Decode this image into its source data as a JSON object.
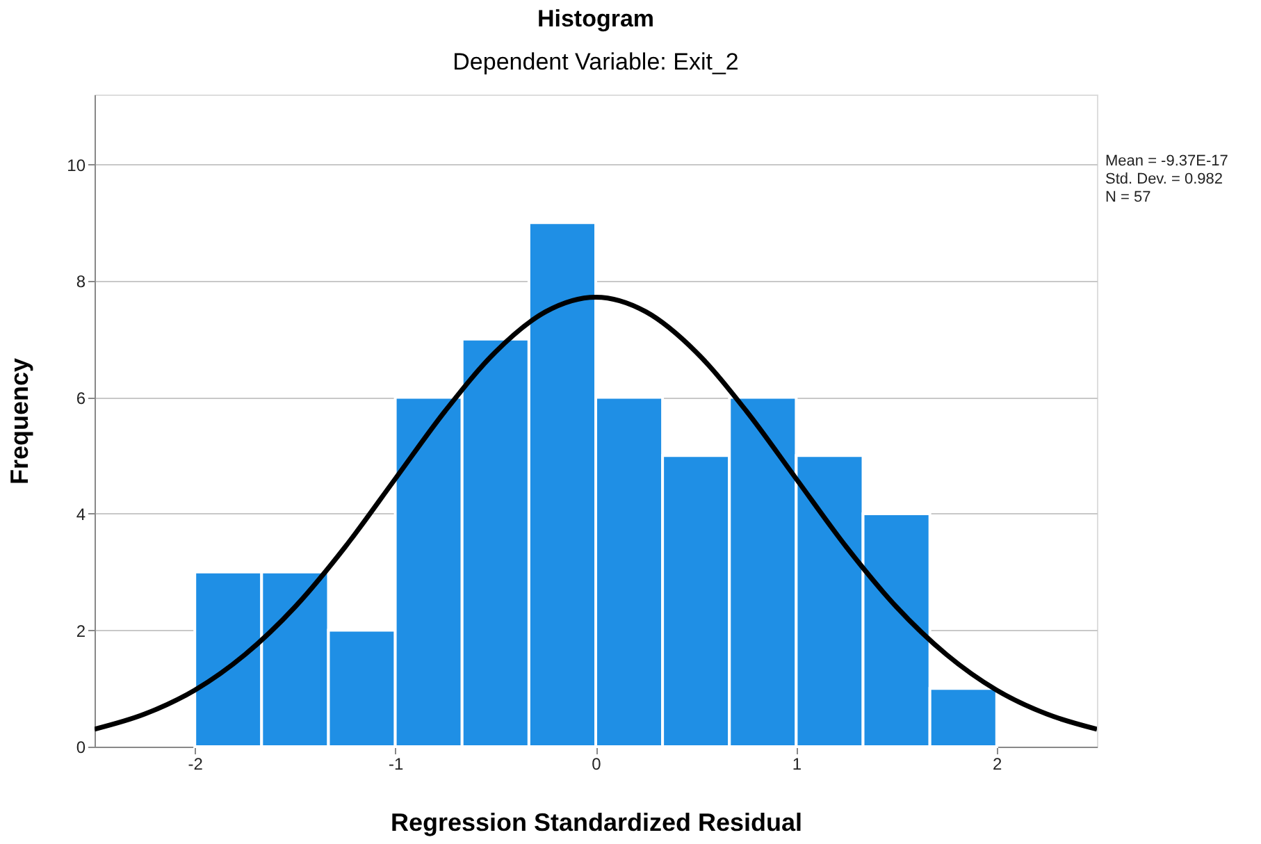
{
  "chart_data": {
    "type": "histogram",
    "title": "Histogram",
    "subtitle": "Dependent Variable: Exit_2",
    "xlabel": "Regression Standardized Residual",
    "ylabel": "Frequency",
    "bins": [
      -2,
      -1.6667,
      -1.3333,
      -1,
      -0.6667,
      -0.3333,
      0,
      0.3333,
      0.6667,
      1,
      1.3333,
      1.6667,
      2
    ],
    "values": [
      3,
      3,
      2,
      6,
      7,
      9,
      6,
      5,
      6,
      5,
      4,
      1
    ],
    "color": "#1f8fe5",
    "series": [
      {
        "type": "line",
        "color": "#000000",
        "x": [
          -2.5,
          -2.25,
          -2,
          -1.75,
          -1.5,
          -1.25,
          -1,
          -0.75,
          -0.5,
          -0.25,
          0,
          0.25,
          0.5,
          0.75,
          1,
          1.25,
          1.5,
          1.75,
          2,
          2.25,
          2.5
        ],
        "values": [
          0.3,
          0.56,
          0.97,
          1.58,
          2.4,
          3.43,
          4.6,
          5.77,
          6.78,
          7.47,
          7.72,
          7.47,
          6.78,
          5.77,
          4.6,
          3.43,
          2.4,
          1.58,
          0.97,
          0.56,
          0.3
        ]
      }
    ],
    "xlim": [
      -2.5,
      2.5
    ],
    "xticks": [
      -2,
      -1,
      0,
      1,
      2
    ],
    "ylim": [
      0,
      11.2
    ],
    "yticks": [
      0,
      2,
      4,
      6,
      8,
      10
    ],
    "grid": "y",
    "annotations": [
      "Mean = -9.37E-17",
      "Std. Dev. = 0.982",
      "N = 57"
    ]
  }
}
